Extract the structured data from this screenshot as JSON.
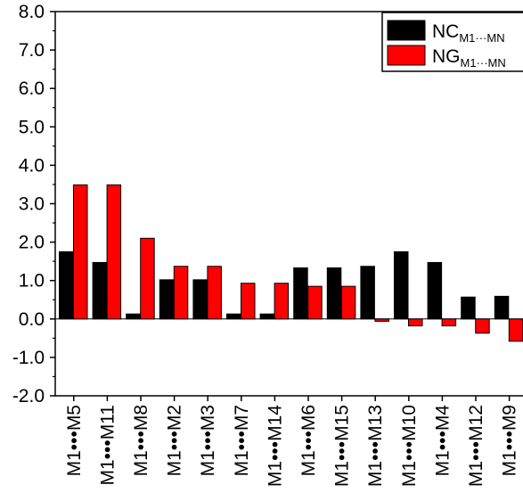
{
  "chart_data": {
    "type": "bar",
    "title": "",
    "xlabel": "",
    "ylabel": "",
    "ylim": [
      -2.0,
      8.0
    ],
    "y_ticks": [
      "-2.0",
      "-1.0",
      "0.0",
      "1.0",
      "2.0",
      "3.0",
      "4.0",
      "5.0",
      "6.0",
      "7.0",
      "8.0"
    ],
    "categories": [
      "M1•••M5",
      "M1•••M11",
      "M1•••M8",
      "M1•••M2",
      "M1•••M3",
      "M1•••M7",
      "M1•••M14",
      "M1•••M6",
      "M1•••M15",
      "M1•••M13",
      "M1•••M10",
      "M1•••M4",
      "M1•••M12",
      "M1•••M9"
    ],
    "series": [
      {
        "name": "NCM1···MN",
        "label_main": "NC",
        "label_sub": "M1···MN",
        "color": "#000000",
        "values": [
          1.75,
          1.47,
          0.13,
          1.02,
          1.02,
          0.13,
          0.13,
          1.33,
          1.33,
          1.37,
          1.75,
          1.47,
          0.57,
          0.59
        ]
      },
      {
        "name": "NGM1···MN",
        "label_main": "NG",
        "label_sub": "M1···MN",
        "color": "#ff0000",
        "values": [
          3.49,
          3.49,
          2.1,
          1.37,
          1.37,
          0.93,
          0.93,
          0.85,
          0.85,
          -0.06,
          -0.18,
          -0.18,
          -0.37,
          -0.58
        ]
      }
    ],
    "grid": false,
    "legend_position": "top-right"
  }
}
